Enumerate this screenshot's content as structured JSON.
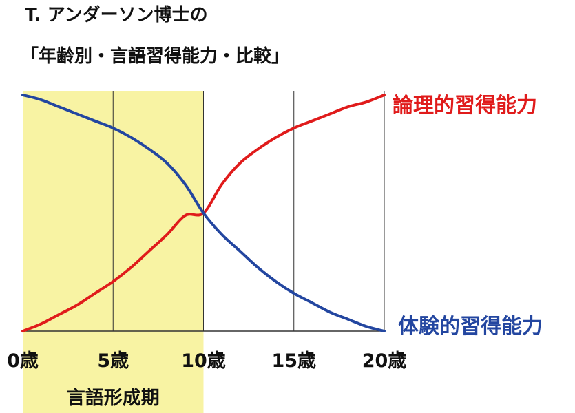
{
  "title_line1": "T. アンダーソン博士の",
  "title_line2": "「年齢別・言語習得能力・比較」",
  "chart_data": {
    "type": "line",
    "xlim": [
      0,
      20
    ],
    "ylim": [
      0,
      100
    ],
    "x_ticks": [
      0,
      5,
      10,
      15,
      20
    ],
    "x_tick_labels": [
      "0歳",
      "5歳",
      "10歳",
      "15歳",
      "20歳"
    ],
    "grid": "vertical",
    "shaded_region": {
      "x_start": 0,
      "x_end": 10,
      "label": "言語形成期",
      "color": "#f8f3a3"
    },
    "series": [
      {
        "name": "論理的習得能力",
        "color": "#e01b1b",
        "x": [
          0,
          1,
          2,
          3,
          4,
          5,
          6,
          7,
          8,
          9,
          10,
          11,
          12,
          13,
          14,
          15,
          16,
          17,
          18,
          19,
          20
        ],
        "y": [
          0,
          3,
          7,
          11,
          16,
          21,
          27,
          34,
          41,
          49,
          50,
          62,
          71,
          77,
          82,
          86,
          89,
          92,
          95,
          97,
          100
        ]
      },
      {
        "name": "体験的習得能力",
        "color": "#2346a0",
        "x": [
          0,
          1,
          2,
          3,
          4,
          5,
          6,
          7,
          8,
          9,
          10,
          11,
          12,
          13,
          14,
          15,
          16,
          17,
          18,
          19,
          20
        ],
        "y": [
          100,
          98,
          95,
          92,
          89,
          86,
          82,
          77,
          71,
          62,
          50,
          41,
          34,
          27,
          21,
          16,
          12,
          8,
          5,
          2,
          0
        ]
      }
    ]
  }
}
